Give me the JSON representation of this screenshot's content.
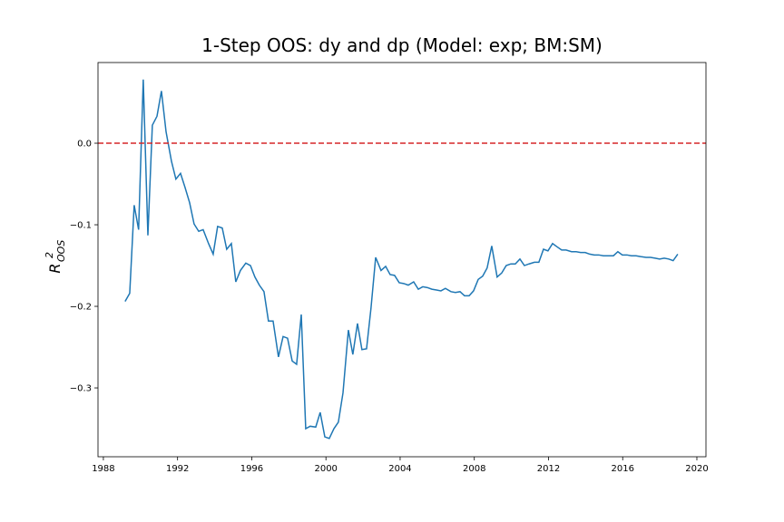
{
  "chart_data": {
    "type": "line",
    "title": "1-Step OOS: dy and dp (Model: exp; BM:SM)",
    "ylabel": {
      "base": "R",
      "sup": "2",
      "sub": "OOS"
    },
    "x": [
      1989.17,
      1989.42,
      1989.66,
      1989.9,
      1990.15,
      1990.4,
      1990.64,
      1990.89,
      1991.13,
      1991.38,
      1991.67,
      1991.91,
      1992.16,
      1992.4,
      1992.65,
      1992.89,
      1993.14,
      1993.38,
      1993.67,
      1993.92,
      1994.16,
      1994.41,
      1994.65,
      1994.9,
      1995.14,
      1995.39,
      1995.68,
      1995.93,
      1996.17,
      1996.41,
      1996.66,
      1996.9,
      1997.15,
      1997.44,
      1997.69,
      1997.93,
      1998.18,
      1998.42,
      1998.67,
      1998.91,
      1999.15,
      1999.45,
      1999.69,
      1999.94,
      2000.18,
      2000.43,
      2000.67,
      2000.92,
      2001.21,
      2001.45,
      2001.7,
      2001.94,
      2002.19,
      2002.43,
      2002.68,
      2002.97,
      2003.22,
      2003.46,
      2003.7,
      2003.95,
      2004.19,
      2004.44,
      2004.73,
      2004.98,
      2005.22,
      2005.47,
      2005.71,
      2005.96,
      2006.2,
      2006.44,
      2006.74,
      2006.98,
      2007.23,
      2007.47,
      2007.72,
      2007.96,
      2008.21,
      2008.45,
      2008.69,
      2008.94,
      2009.23,
      2009.48,
      2009.72,
      2009.97,
      2010.21,
      2010.46,
      2010.7,
      2010.95,
      2011.24,
      2011.48,
      2011.73,
      2011.97,
      2012.22,
      2012.46,
      2012.71,
      2012.95,
      2013.24,
      2013.49,
      2013.73,
      2013.98,
      2014.22,
      2014.47,
      2014.71,
      2014.96,
      2015.25,
      2015.5,
      2015.74,
      2015.98,
      2016.23,
      2016.47,
      2016.72,
      2016.96,
      2017.26,
      2017.5,
      2017.75,
      2017.99,
      2018.24,
      2018.48,
      2018.72,
      2018.97
    ],
    "series": [
      {
        "name": "R2 OOS",
        "color": "#1f77b4",
        "values": [
          -0.194,
          -0.184,
          -0.076,
          -0.106,
          0.078,
          -0.113,
          0.022,
          0.033,
          0.064,
          0.014,
          -0.022,
          -0.044,
          -0.037,
          -0.054,
          -0.073,
          -0.099,
          -0.108,
          -0.106,
          -0.123,
          -0.136,
          -0.102,
          -0.104,
          -0.13,
          -0.123,
          -0.17,
          -0.156,
          -0.147,
          -0.15,
          -0.164,
          -0.174,
          -0.182,
          -0.218,
          -0.218,
          -0.262,
          -0.237,
          -0.239,
          -0.267,
          -0.271,
          -0.21,
          -0.35,
          -0.347,
          -0.348,
          -0.33,
          -0.36,
          -0.362,
          -0.35,
          -0.342,
          -0.306,
          -0.229,
          -0.259,
          -0.221,
          -0.253,
          -0.252,
          -0.202,
          -0.14,
          -0.156,
          -0.151,
          -0.161,
          -0.162,
          -0.171,
          -0.172,
          -0.174,
          -0.17,
          -0.179,
          -0.176,
          -0.177,
          -0.179,
          -0.18,
          -0.181,
          -0.178,
          -0.182,
          -0.183,
          -0.182,
          -0.187,
          -0.187,
          -0.181,
          -0.167,
          -0.163,
          -0.153,
          -0.126,
          -0.164,
          -0.159,
          -0.15,
          -0.148,
          -0.148,
          -0.142,
          -0.15,
          -0.148,
          -0.146,
          -0.146,
          -0.13,
          -0.132,
          -0.123,
          -0.127,
          -0.131,
          -0.131,
          -0.133,
          -0.133,
          -0.134,
          -0.134,
          -0.136,
          -0.137,
          -0.137,
          -0.138,
          -0.138,
          -0.138,
          -0.133,
          -0.137,
          -0.137,
          -0.138,
          -0.138,
          -0.139,
          -0.14,
          -0.14,
          -0.141,
          -0.142,
          -0.141,
          -0.142,
          -0.144,
          -0.136
        ]
      }
    ],
    "hline": {
      "y": 0,
      "color": "#d62728",
      "style": "dashed"
    },
    "xlim": [
      1987.71,
      2020.49
    ],
    "xticks": [
      1988,
      1992,
      1996,
      2000,
      2004,
      2008,
      2012,
      2016,
      2020
    ],
    "ylim": [
      -0.3844,
      0.0989
    ],
    "yticks": [
      {
        "value": -0.3,
        "label": "−0.3"
      },
      {
        "value": -0.2,
        "label": "−0.2"
      },
      {
        "value": -0.1,
        "label": "−0.1"
      },
      {
        "value": 0,
        "label": "0.0"
      }
    ],
    "grid": false
  }
}
